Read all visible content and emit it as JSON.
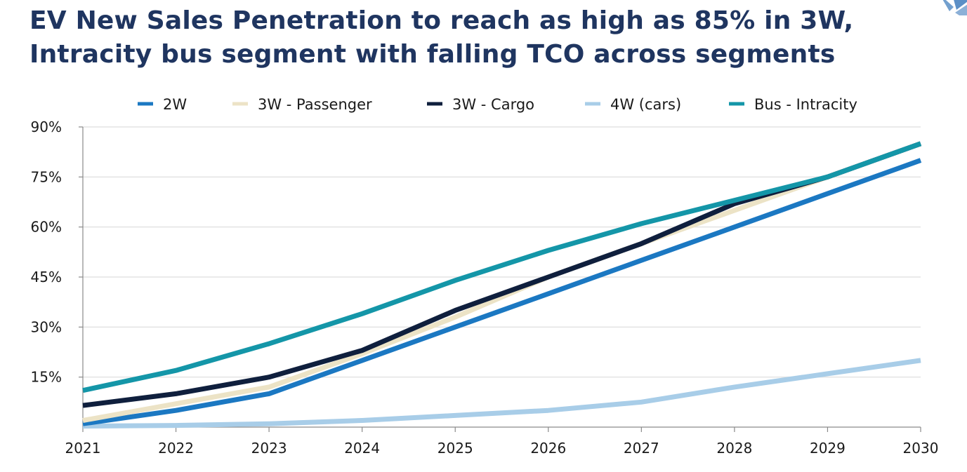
{
  "title": {
    "line1": "EV New Sales Penetration to reach as high as 85% in 3W,",
    "line2": "Intracity bus segment with falling TCO across segments"
  },
  "logo": {
    "icon": "brand-logo-icon",
    "color": "#5b8fc6"
  },
  "chart_data": {
    "type": "line",
    "x": [
      2021,
      2022,
      2023,
      2024,
      2025,
      2026,
      2027,
      2028,
      2029,
      2030
    ],
    "ylim": [
      0,
      90
    ],
    "yticks": [
      15,
      30,
      45,
      60,
      75,
      90
    ],
    "ytick_labels": [
      "15%",
      "30%",
      "45%",
      "60%",
      "75%",
      "90%"
    ],
    "xtick_labels": [
      "2021",
      "2022",
      "2023",
      "2024",
      "2025",
      "2026",
      "2027",
      "2028",
      "2029",
      "2030"
    ],
    "grid": true,
    "legend_position": "top",
    "xlabel": "",
    "ylabel": "",
    "series": [
      {
        "name": "2W",
        "color": "#1b78c2",
        "values": [
          1,
          5,
          10,
          20,
          30,
          40,
          50,
          60,
          70,
          80
        ]
      },
      {
        "name": "3W - Passenger",
        "color": "#ece3c6",
        "values": [
          2,
          7,
          12,
          22,
          33,
          45,
          55,
          65,
          75,
          85
        ]
      },
      {
        "name": "3W - Cargo",
        "color": "#0f1f3d",
        "values": [
          6.5,
          10,
          15,
          23,
          35,
          45,
          55,
          67,
          75,
          85
        ]
      },
      {
        "name": "4W (cars)",
        "color": "#a8cde8",
        "values": [
          0.3,
          0.5,
          1,
          2,
          3.5,
          5,
          7.5,
          12,
          16,
          20
        ]
      },
      {
        "name": "Bus - Intracity",
        "color": "#1496a8",
        "values": [
          11,
          17,
          25,
          34,
          44,
          53,
          61,
          68,
          75,
          85
        ]
      }
    ]
  }
}
